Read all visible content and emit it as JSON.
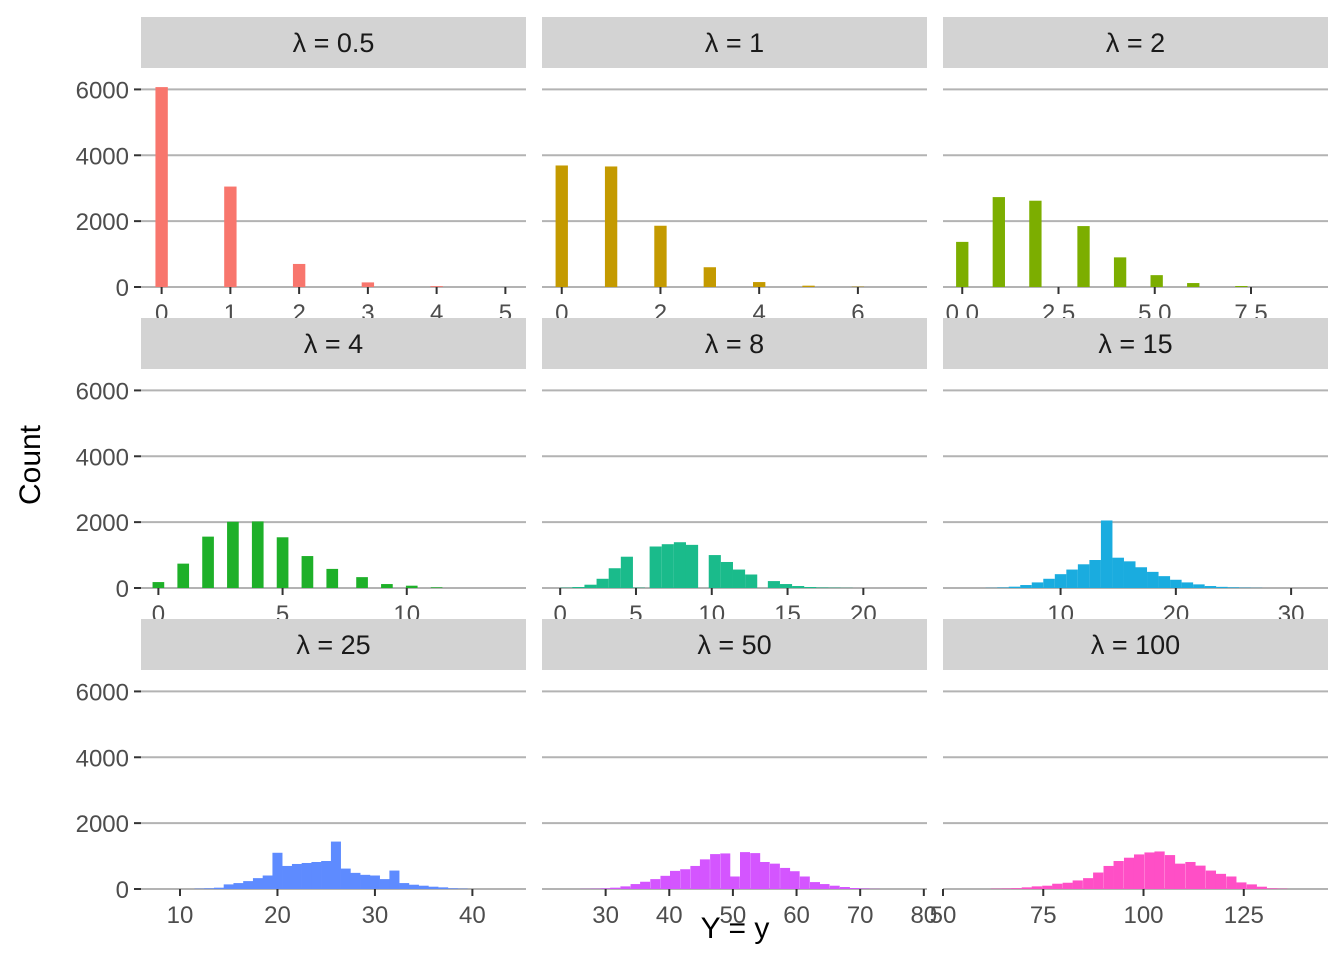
{
  "chart_data": {
    "type": "bar",
    "xlabel": "Y = y",
    "ylabel": "Count",
    "ylim": [
      0,
      6000
    ],
    "yticks": [
      0,
      2000,
      4000,
      6000
    ],
    "ytick_labels": [
      "0",
      "2000",
      "4000",
      "6000"
    ],
    "grid": true,
    "legend": "none",
    "panels": [
      {
        "label": "λ = 0.5",
        "color": "#F8766D",
        "xlim": [
          -0.3,
          5.3
        ],
        "xticks": [
          0,
          1,
          2,
          3,
          4,
          5
        ],
        "xtick_labels": [
          "0",
          "1",
          "2",
          "3",
          "4",
          "5"
        ],
        "bin_width": 0.18,
        "x": [
          0,
          1,
          2,
          3,
          4
        ],
        "values": [
          6070,
          3050,
          700,
          140,
          25
        ]
      },
      {
        "label": "λ = 1",
        "color": "#C49A00",
        "xlim": [
          -0.4,
          7.4
        ],
        "xticks": [
          0,
          2,
          4,
          6
        ],
        "xtick_labels": [
          "0",
          "2",
          "4",
          "6"
        ],
        "bin_width": 0.25,
        "x": [
          0,
          1,
          2,
          3,
          4,
          5,
          6
        ],
        "values": [
          3690,
          3660,
          1860,
          600,
          150,
          40,
          10
        ]
      },
      {
        "label": "λ = 2",
        "color": "#7CAE00",
        "xlim": [
          -0.5,
          9.5
        ],
        "xticks": [
          0,
          2.5,
          5,
          7.5
        ],
        "xtick_labels": [
          "0.0",
          "2.5",
          "5.0",
          "7.5"
        ],
        "bin_width": 0.32,
        "x": [
          0,
          0.95,
          1.9,
          3.15,
          4.1,
          5.05,
          6.0,
          7.25
        ],
        "values": [
          1370,
          2730,
          2620,
          1850,
          900,
          360,
          120,
          30
        ]
      },
      {
        "label": "λ = 4",
        "color": "#1EB029",
        "xlim": [
          -0.7,
          14.8
        ],
        "xticks": [
          0,
          5,
          10
        ],
        "xtick_labels": [
          "0",
          "5",
          "10"
        ],
        "bin_width": 0.47,
        "x": [
          0,
          1,
          2,
          3,
          4,
          5,
          6,
          7,
          8.2,
          9.2,
          10.2,
          11.2
        ],
        "values": [
          180,
          740,
          1560,
          2010,
          2020,
          1540,
          970,
          580,
          330,
          120,
          70,
          20
        ]
      },
      {
        "label": "λ = 8",
        "color": "#1ABB8B",
        "xlim": [
          -1.2,
          24.2
        ],
        "xticks": [
          0,
          5,
          10,
          15,
          20
        ],
        "xtick_labels": [
          "0",
          "5",
          "10",
          "15",
          "20"
        ],
        "bin_width": 0.8,
        "x": [
          0.4,
          1.2,
          2.0,
          2.8,
          3.6,
          4.4,
          5.2,
          6.3,
          7.1,
          7.9,
          8.7,
          10.2,
          11.0,
          11.8,
          12.6,
          14.1,
          14.9,
          15.7,
          16.5,
          17.3,
          18.1,
          18.9
        ],
        "values": [
          10,
          30,
          100,
          280,
          600,
          950,
          10,
          1260,
          1330,
          1390,
          1310,
          1000,
          790,
          560,
          410,
          210,
          120,
          60,
          30,
          15,
          10,
          5
        ]
      },
      {
        "label": "λ = 15",
        "color": "#1AACDF",
        "xlim": [
          -0.2,
          33.2
        ],
        "xticks": [
          10,
          20,
          30
        ],
        "xtick_labels": [
          "10",
          "20",
          "30"
        ],
        "bin_width": 1.0,
        "x": [
          4,
          5,
          6,
          7,
          8,
          9,
          10,
          11,
          12,
          13,
          14,
          15,
          16,
          17,
          18,
          19,
          20,
          21,
          22,
          23,
          24,
          25,
          26,
          27
        ],
        "values": [
          5,
          15,
          40,
          90,
          170,
          280,
          420,
          560,
          720,
          850,
          2050,
          920,
          810,
          630,
          490,
          360,
          250,
          170,
          110,
          60,
          35,
          20,
          10,
          5
        ]
      },
      {
        "label": "λ = 25",
        "color": "#5E8BFF",
        "xlim": [
          6,
          45.5
        ],
        "xticks": [
          10,
          20,
          30,
          40
        ],
        "xtick_labels": [
          "10",
          "20",
          "30",
          "40"
        ],
        "bin_width": 1.03,
        "x": [
          12,
          13,
          14,
          15,
          16,
          17,
          18,
          19,
          20,
          21,
          22,
          23,
          24,
          25,
          26,
          27,
          28,
          29,
          30,
          31,
          32,
          33,
          34,
          35,
          36,
          37,
          38,
          39
        ],
        "values": [
          10,
          20,
          40,
          140,
          180,
          240,
          330,
          410,
          1100,
          700,
          760,
          790,
          820,
          850,
          1440,
          620,
          490,
          430,
          410,
          300,
          560,
          180,
          130,
          100,
          70,
          50,
          20,
          10
        ]
      },
      {
        "label": "λ = 50",
        "color": "#D455FF",
        "xlim": [
          20,
          80.5
        ],
        "xticks": [
          30,
          40,
          50,
          60,
          70,
          80
        ],
        "xtick_labels": [
          "30",
          "40",
          "50",
          "60",
          "70",
          "80"
        ],
        "bin_width": 1.57,
        "x": [
          26.8,
          28.4,
          30.0,
          31.5,
          33.1,
          34.7,
          36.2,
          37.8,
          39.4,
          40.9,
          42.5,
          44.1,
          45.6,
          47.2,
          48.8,
          50.3,
          51.9,
          53.5,
          55.0,
          56.6,
          58.2,
          59.7,
          61.3,
          62.9,
          64.4,
          66.0,
          67.6,
          69.1,
          70.7,
          72.3
        ],
        "values": [
          5,
          10,
          20,
          40,
          80,
          150,
          220,
          300,
          400,
          550,
          600,
          700,
          900,
          1060,
          1080,
          380,
          1120,
          1090,
          820,
          770,
          640,
          540,
          380,
          210,
          150,
          100,
          60,
          30,
          15,
          5
        ]
      },
      {
        "label": "λ = 100",
        "color": "#FF4FC6",
        "xlim": [
          50,
          146
        ],
        "xticks": [
          50,
          75,
          100,
          125
        ],
        "xtick_labels": [
          "50",
          "75",
          "100",
          "125"
        ],
        "bin_width": 2.55,
        "x": [
          63.2,
          65.8,
          68.3,
          70.9,
          73.4,
          76.0,
          78.5,
          81.1,
          83.6,
          86.2,
          88.7,
          91.3,
          93.8,
          96.4,
          98.9,
          101.5,
          104.0,
          106.6,
          109.1,
          111.7,
          114.2,
          116.8,
          119.3,
          121.9,
          124.4,
          127.0,
          129.5,
          132.1,
          134.6
        ],
        "values": [
          10,
          15,
          25,
          50,
          80,
          100,
          160,
          190,
          260,
          330,
          500,
          700,
          850,
          950,
          1050,
          1110,
          1140,
          1030,
          770,
          820,
          710,
          560,
          460,
          380,
          200,
          140,
          70,
          20,
          10
        ]
      }
    ]
  }
}
